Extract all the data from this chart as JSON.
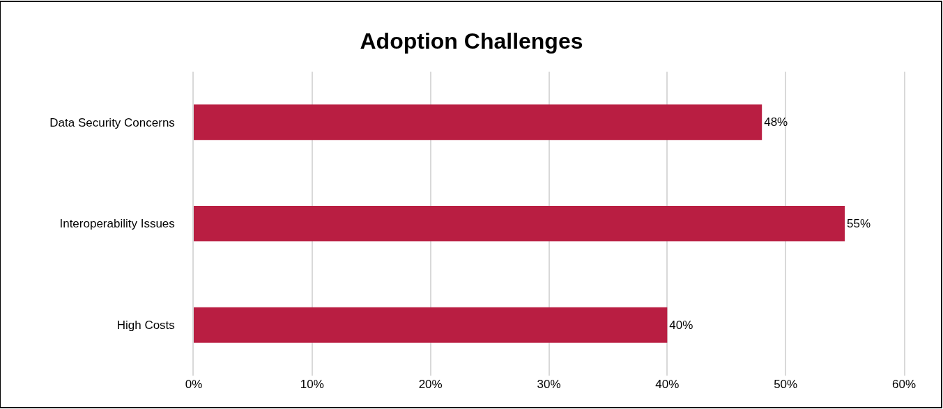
{
  "chart_data": {
    "type": "bar",
    "orientation": "horizontal",
    "title": "Adoption Challenges",
    "categories": [
      "Data Security Concerns",
      "Interoperability Issues",
      "High Costs"
    ],
    "values": [
      48,
      55,
      40
    ],
    "color": "#b91e42",
    "value_labels": [
      "48%",
      "55%",
      "40%"
    ],
    "xlim": [
      0,
      60
    ],
    "xticks": [
      {
        "value": 0,
        "label": "0%"
      },
      {
        "value": 10,
        "label": "10%"
      },
      {
        "value": 20,
        "label": "20%"
      },
      {
        "value": 30,
        "label": "30%"
      },
      {
        "value": 40,
        "label": "40%"
      },
      {
        "value": 50,
        "label": "50%"
      },
      {
        "value": 60,
        "label": "60%"
      }
    ],
    "grid": "x"
  }
}
